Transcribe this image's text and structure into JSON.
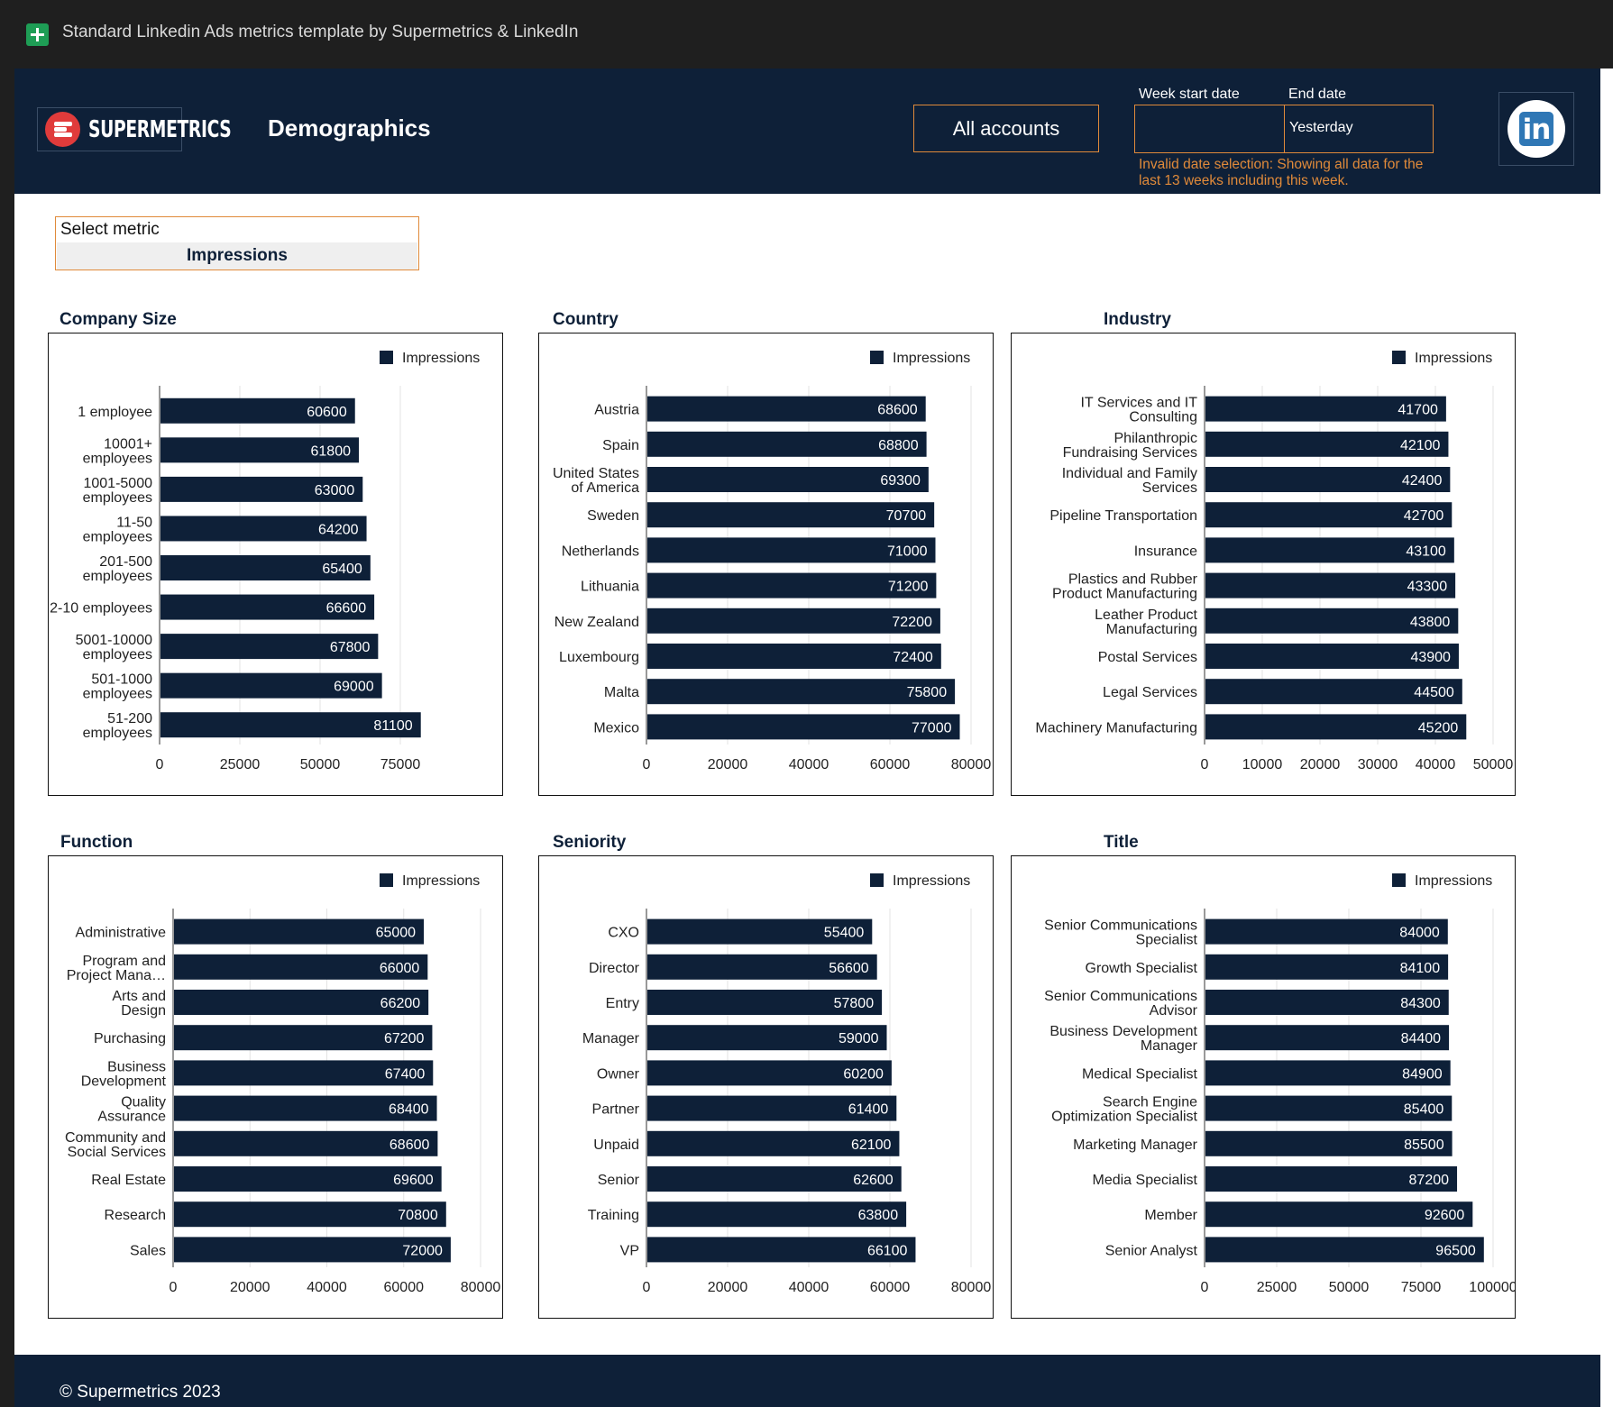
{
  "window": {
    "title": "Standard Linkedin Ads metrics template by Supermetrics & LinkedIn"
  },
  "header": {
    "logo_text": "SUPERMETRICS",
    "page_title": "Demographics",
    "accounts_label": "All accounts",
    "week_start_label": "Week start date",
    "end_date_label": "End date",
    "week_start_value": "",
    "end_date_value": "Yesterday",
    "warning": "Invalid date selection: Showing all data for the last 13 weeks including this week.",
    "linkedin_text": "in"
  },
  "metric_selector": {
    "label": "Select metric",
    "value": "Impressions"
  },
  "footer": {
    "copyright": "© Supermetrics 2023"
  },
  "colors": {
    "bar": "#0e2038",
    "accent": "#e08a3a",
    "header": "#0e2038",
    "grid": "#e3e3e3"
  },
  "chart_data": [
    {
      "id": "company-size",
      "title": "Company Size",
      "type": "bar",
      "orientation": "horizontal",
      "legend": "Impressions",
      "categories": [
        "1 employee",
        "10001+ employees",
        "1001-5000 employees",
        "11-50 employees",
        "201-500 employees",
        "2-10 employees",
        "5001-10000 employees",
        "501-1000 employees",
        "51-200 employees"
      ],
      "values": [
        60600,
        61800,
        63000,
        64200,
        65400,
        66600,
        67800,
        69000,
        81100
      ],
      "xlim": [
        0,
        100000
      ],
      "ticks": [
        0,
        25000,
        50000,
        75000
      ],
      "grid": true
    },
    {
      "id": "country",
      "title": "Country",
      "type": "bar",
      "orientation": "horizontal",
      "legend": "Impressions",
      "categories": [
        "Austria",
        "Spain",
        "United States of America",
        "Sweden",
        "Netherlands",
        "Lithuania",
        "New Zealand",
        "Luxembourg",
        "Malta",
        "Mexico"
      ],
      "values": [
        68600,
        68800,
        69300,
        70700,
        71000,
        71200,
        72200,
        72400,
        75800,
        77000
      ],
      "xlim": [
        0,
        80000
      ],
      "ticks": [
        0,
        20000,
        40000,
        60000,
        80000
      ],
      "grid": true
    },
    {
      "id": "industry",
      "title": "Industry",
      "type": "bar",
      "orientation": "horizontal",
      "legend": "Impressions",
      "categories": [
        "IT Services and IT Consulting",
        "Philanthropic Fundraising Services",
        "Individual and Family Services",
        "Pipeline Transportation",
        "Insurance",
        "Plastics and Rubber Product Manufacturing",
        "Leather Product Manufacturing",
        "Postal Services",
        "Legal Services",
        "Machinery Manufacturing"
      ],
      "values": [
        41700,
        42100,
        42400,
        42700,
        43100,
        43300,
        43800,
        43900,
        44500,
        45200
      ],
      "xlim": [
        0,
        50000
      ],
      "ticks": [
        0,
        10000,
        20000,
        30000,
        40000,
        50000
      ],
      "grid": true
    },
    {
      "id": "function",
      "title": "Function",
      "type": "bar",
      "orientation": "horizontal",
      "legend": "Impressions",
      "categories": [
        "Administrative",
        "Program and Project Mana…",
        "Arts and Design",
        "Purchasing",
        "Business Development",
        "Quality Assurance",
        "Community and Social Services",
        "Real Estate",
        "Research",
        "Sales"
      ],
      "values": [
        65000,
        66000,
        66200,
        67200,
        67400,
        68400,
        68600,
        69600,
        70800,
        72000
      ],
      "xlim": [
        0,
        80000
      ],
      "ticks": [
        0,
        20000,
        40000,
        60000,
        80000
      ],
      "grid": true
    },
    {
      "id": "seniority",
      "title": "Seniority",
      "type": "bar",
      "orientation": "horizontal",
      "legend": "Impressions",
      "categories": [
        "CXO",
        "Director",
        "Entry",
        "Manager",
        "Owner",
        "Partner",
        "Unpaid",
        "Senior",
        "Training",
        "VP"
      ],
      "values": [
        55400,
        56600,
        57800,
        59000,
        60200,
        61400,
        62100,
        62600,
        63800,
        66100
      ],
      "xlim": [
        0,
        80000
      ],
      "ticks": [
        0,
        20000,
        40000,
        60000,
        80000
      ],
      "grid": true
    },
    {
      "id": "title",
      "title": "Title",
      "type": "bar",
      "orientation": "horizontal",
      "legend": "Impressions",
      "categories": [
        "Senior Communications Specialist",
        "Growth Specialist",
        "Senior Communications Advisor",
        "Business Development Manager",
        "Medical Specialist",
        "Search Engine Optimization Specialist",
        "Marketing Manager",
        "Media Specialist",
        "Member",
        "Senior Analyst"
      ],
      "values": [
        84000,
        84100,
        84300,
        84400,
        84900,
        85400,
        85500,
        87200,
        92600,
        96500
      ],
      "xlim": [
        0,
        100000
      ],
      "ticks": [
        0,
        25000,
        50000,
        75000,
        100000
      ],
      "grid": true
    }
  ]
}
